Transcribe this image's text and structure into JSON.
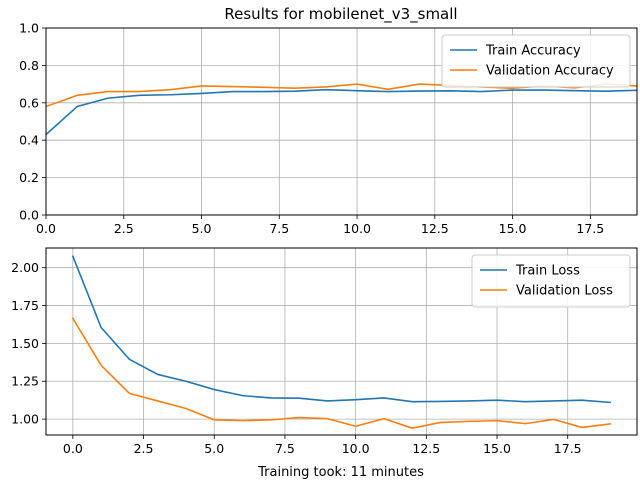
{
  "figure": {
    "title": "Results for mobilenet_v3_small",
    "xlabel": "Training took: 11 minutes"
  },
  "colors": {
    "series1": "#1f77b4",
    "series2": "#ff7f0e",
    "grid": "#b0b0b0"
  },
  "chart_data": [
    {
      "type": "line",
      "title": "Results for mobilenet_v3_small",
      "xlabel": "",
      "ylabel": "",
      "xlim": [
        0,
        19
      ],
      "ylim": [
        0.0,
        1.0
      ],
      "xticks": [
        0.0,
        2.5,
        5.0,
        7.5,
        10.0,
        12.5,
        15.0,
        17.5
      ],
      "xtick_labels": [
        "0.0",
        "2.5",
        "5.0",
        "7.5",
        "10.0",
        "12.5",
        "15.0",
        "17.5"
      ],
      "yticks": [
        0.0,
        0.2,
        0.4,
        0.6,
        0.8,
        1.0
      ],
      "ytick_labels": [
        "0.0",
        "0.2",
        "0.4",
        "0.6",
        "0.8",
        "1.0"
      ],
      "grid": true,
      "legend": "top-right",
      "x": [
        0,
        1,
        2,
        3,
        4,
        5,
        6,
        7,
        8,
        9,
        10,
        11,
        12,
        13,
        14,
        15,
        16,
        17,
        18,
        19
      ],
      "series": [
        {
          "name": "Train Accuracy",
          "color": "#1f77b4",
          "values": [
            0.43,
            0.58,
            0.625,
            0.64,
            0.643,
            0.65,
            0.66,
            0.66,
            0.662,
            0.67,
            0.665,
            0.66,
            0.663,
            0.664,
            0.66,
            0.668,
            0.668,
            0.665,
            0.662,
            0.667
          ]
        },
        {
          "name": "Validation Accuracy",
          "color": "#ff7f0e",
          "values": [
            0.58,
            0.64,
            0.66,
            0.66,
            0.67,
            0.69,
            0.687,
            0.683,
            0.678,
            0.685,
            0.7,
            0.672,
            0.7,
            0.693,
            0.685,
            0.678,
            0.69,
            0.68,
            0.7,
            0.69
          ]
        }
      ]
    },
    {
      "type": "line",
      "title": "",
      "xlabel": "Training took: 11 minutes",
      "ylabel": "",
      "xlim": [
        -0.95,
        19.95
      ],
      "ylim": [
        0.895,
        2.13
      ],
      "xticks": [
        0.0,
        2.5,
        5.0,
        7.5,
        10.0,
        12.5,
        15.0,
        17.5
      ],
      "xtick_labels": [
        "0.0",
        "2.5",
        "5.0",
        "7.5",
        "10.0",
        "12.5",
        "15.0",
        "17.5"
      ],
      "yticks": [
        1.0,
        1.25,
        1.5,
        1.75,
        2.0
      ],
      "ytick_labels": [
        "1.00",
        "1.25",
        "1.50",
        "1.75",
        "2.00"
      ],
      "grid": true,
      "legend": "top-right",
      "x": [
        0,
        1,
        2,
        3,
        4,
        5,
        6,
        7,
        8,
        9,
        10,
        11,
        12,
        13,
        14,
        15,
        16,
        17,
        18,
        19
      ],
      "series": [
        {
          "name": "Train Loss",
          "color": "#1f77b4",
          "values": [
            2.075,
            1.605,
            1.395,
            1.295,
            1.25,
            1.195,
            1.155,
            1.14,
            1.138,
            1.12,
            1.128,
            1.14,
            1.115,
            1.117,
            1.12,
            1.125,
            1.115,
            1.12,
            1.125,
            1.11
          ]
        },
        {
          "name": "Validation Loss",
          "color": "#ff7f0e",
          "values": [
            1.665,
            1.355,
            1.17,
            1.12,
            1.07,
            0.995,
            0.99,
            0.995,
            1.01,
            1.003,
            0.953,
            1.003,
            0.94,
            0.978,
            0.985,
            0.99,
            0.97,
            0.998,
            0.945,
            0.968
          ]
        }
      ]
    }
  ]
}
